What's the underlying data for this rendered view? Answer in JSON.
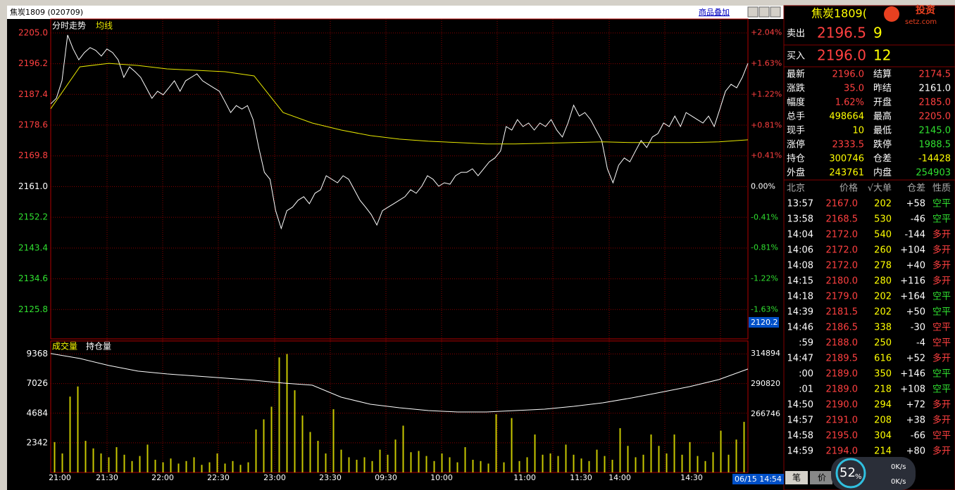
{
  "window": {
    "symbol_title": "焦炭1809 (020709)",
    "overlay_button": "商品叠加",
    "date_time": "06/15 14:54",
    "cursor_price": "2120.2"
  },
  "chart_data": [
    {
      "type": "line",
      "title": "分时走势",
      "ylim": [
        2117.4,
        2209.0
      ],
      "yticks": [
        {
          "value": 2205,
          "label": "2205.0"
        },
        2196.2,
        2187.4,
        2178.6,
        2169.8,
        {
          "value": 2161,
          "label": "2161.0"
        },
        2152.2,
        2143.4,
        2134.6,
        2125.8
      ],
      "y2lim": [
        -2.018,
        2.221
      ],
      "y2ticks": [
        {
          "value": 2.04,
          "label": "+2.04%"
        },
        {
          "value": 1.63,
          "label": "+1.63%"
        },
        {
          "value": 1.22,
          "label": "+1.22%"
        },
        {
          "value": 0.81,
          "label": "+0.81%"
        },
        {
          "value": 0.41,
          "label": "+0.41%"
        },
        {
          "value": 0,
          "label": "0.00%"
        },
        {
          "value": -0.41,
          "label": "-0.41%"
        },
        {
          "value": -0.81,
          "label": "-0.81%"
        },
        {
          "value": -1.22,
          "label": "-1.22%"
        },
        {
          "value": -1.63,
          "label": "-1.63%"
        }
      ],
      "grid": true,
      "series": [
        {
          "color": "#ffffff",
          "values": [
            2184.7,
            2186.3,
            2191.3,
            2204.4,
            2200.4,
            2197.3,
            2199.4,
            2200.8,
            2200,
            2198.4,
            2200.4,
            2199.4,
            2197.3,
            2192.3,
            2195.3,
            2193.9,
            2192.3,
            2189.3,
            2186.3,
            2188.3,
            2187.3,
            2189.3,
            2191.3,
            2188.3,
            2191.3,
            2192.3,
            2193.3,
            2191.3,
            2190.3,
            2189.3,
            2188.3,
            2185.3,
            2182.2,
            2184.2,
            2183.2,
            2184.2,
            2180.2,
            2172.2,
            2165.1,
            2163.1,
            2154.1,
            2149,
            2154.1,
            2155.1,
            2157.1,
            2158.1,
            2156.1,
            2159.1,
            2160.1,
            2164.1,
            2163.1,
            2162.1,
            2164.1,
            2163.1,
            2160.1,
            2157.1,
            2155.1,
            2153,
            2150,
            2154.1,
            2155.1,
            2156.1,
            2157.1,
            2158.1,
            2160.1,
            2159.1,
            2161.1,
            2164.1,
            2163.1,
            2161.1,
            2162.1,
            2161.7,
            2164.1,
            2165.1,
            2165.1,
            2166.1,
            2164.1,
            2166.1,
            2168.1,
            2169.2,
            2171.2,
            2178.2,
            2177.2,
            2180.2,
            2178.2,
            2179.2,
            2177.2,
            2179.2,
            2178.2,
            2180.2,
            2177.2,
            2175.2,
            2179.2,
            2184.3,
            2181.2,
            2182.2,
            2180.2,
            2177.2,
            2174.2,
            2166.1,
            2162.1,
            2167.1,
            2169.2,
            2168.1,
            2171.2,
            2174.2,
            2172.2,
            2175.2,
            2176.2,
            2179.2,
            2178.2,
            2181.2,
            2178.2,
            2182.2,
            2181.2,
            2180.2,
            2179.2,
            2181.2,
            2178.2,
            2183.2,
            2188.3,
            2190.3,
            2189.3,
            2192.3,
            2196.3
          ]
        },
        {
          "name": "均线",
          "color": "#e8e800",
          "values": [
            2183.3,
            2195.3,
            2196.3,
            2195.7,
            2194.7,
            2194.3,
            2193.9,
            2192.7,
            2182.2,
            2179.2,
            2177.2,
            2175.6,
            2174.6,
            2174,
            2173.6,
            2173.2,
            2173.2,
            2173.4,
            2173.6,
            2173.8,
            2173.6,
            2173.6,
            2173.6,
            2173.8,
            2174.4
          ]
        }
      ]
    },
    {
      "type": "bar",
      "x_labels": [
        "21:00",
        "21:30",
        "22:00",
        "22:30",
        "23:00",
        "23:30",
        "09:30",
        "10:00",
        "11:00",
        "11:30",
        "14:00",
        "14:30"
      ],
      "ylim": [
        0,
        10400
      ],
      "yticks": [
        2342,
        4684,
        7026,
        9368
      ],
      "y2lim": [
        220300,
        324900
      ],
      "y2ticks": [
        266746,
        290820,
        314894
      ],
      "grid": true,
      "series": [
        {
          "name": "成交量",
          "type": "bar",
          "color": "#c8c800",
          "values": [
            2400,
            1500,
            6000,
            6800,
            2500,
            1900,
            1500,
            1200,
            2000,
            1400,
            900,
            1300,
            2200,
            1000,
            800,
            1100,
            700,
            900,
            1200,
            600,
            800,
            1500,
            700,
            900,
            600,
            800,
            3400,
            4200,
            5200,
            9100,
            9368,
            6500,
            4500,
            3200,
            2500,
            1500,
            5000,
            1800,
            1200,
            1000,
            1200,
            900,
            1800,
            1400,
            2600,
            3700,
            1600,
            1700,
            1300,
            900,
            1500,
            1200,
            800,
            2000,
            1000,
            900,
            700,
            4600,
            800,
            4300,
            900,
            1200,
            3000,
            1400,
            1500,
            1300,
            2200,
            1400,
            1100,
            900,
            1800,
            1300,
            1000,
            3500,
            2100,
            1200,
            1400,
            3000,
            2100,
            1500,
            3000,
            1400,
            2400,
            1300,
            900,
            1600,
            3300,
            1400,
            2600,
            4000
          ]
        },
        {
          "name": "持仓量",
          "type": "line",
          "axis": "y2",
          "color": "#ffffff",
          "values": [
            314894,
            310974,
            305374,
            300894,
            298654,
            296974,
            295294,
            293614,
            291374,
            289694,
            280174,
            274574,
            271774,
            269534,
            268414,
            268414,
            269534,
            270654,
            272894,
            275694,
            279614,
            284094,
            288574,
            294174,
            302574
          ]
        }
      ]
    }
  ],
  "quote": {
    "header": "焦炭1809(",
    "logo": "投资",
    "logo_url": "setz.com",
    "sell": {
      "label": "卖出",
      "price": "2196.5",
      "qty": "9"
    },
    "buy": {
      "label": "买入",
      "price": "2196.0",
      "qty": "12"
    },
    "stats_left": [
      {
        "label": "最新",
        "value": "2196.0",
        "color": "#ff4040"
      },
      {
        "label": "涨跌",
        "value": "35.0",
        "color": "#ff4040"
      },
      {
        "label": "幅度",
        "value": "1.62%",
        "color": "#ff4040"
      },
      {
        "label": "总手",
        "value": "498664",
        "color": "#ffff00"
      },
      {
        "label": "现手",
        "value": "10",
        "color": "#ffff00"
      },
      {
        "label": "涨停",
        "value": "2333.5",
        "color": "#ff4040"
      },
      {
        "label": "持仓",
        "value": "300746",
        "color": "#ffff00"
      },
      {
        "label": "外盘",
        "value": "243761",
        "color": "#ffff00"
      }
    ],
    "stats_right": [
      {
        "label": "结算",
        "value": "2174.5",
        "color": "#ff4040"
      },
      {
        "label": "昨结",
        "value": "2161.0",
        "color": "#ffffff"
      },
      {
        "label": "开盘",
        "value": "2185.0",
        "color": "#ff4040"
      },
      {
        "label": "最高",
        "value": "2205.0",
        "color": "#ff4040"
      },
      {
        "label": "最低",
        "value": "2145.0",
        "color": "#30e030"
      },
      {
        "label": "跌停",
        "value": "1988.5",
        "color": "#30e030"
      },
      {
        "label": "仓差",
        "value": "-14428",
        "color": "#ffff00"
      },
      {
        "label": "内盘",
        "value": "254903",
        "color": "#30e030"
      }
    ]
  },
  "trades": {
    "header": [
      "北京",
      "价格",
      "√大单",
      "仓差",
      "性质"
    ],
    "rows": [
      {
        "cells": [
          "13:57",
          "2167.0",
          "202",
          "+58",
          "空平"
        ],
        "color": "#30e030"
      },
      {
        "cells": [
          "13:58",
          "2168.5",
          "530",
          "-46",
          "空平"
        ],
        "color": "#30e030"
      },
      {
        "cells": [
          "14:04",
          "2172.0",
          "540",
          "-144",
          "多开"
        ],
        "color": "#ff4040"
      },
      {
        "cells": [
          "14:06",
          "2172.0",
          "260",
          "+104",
          "多开"
        ],
        "color": "#ff4040"
      },
      {
        "cells": [
          "14:08",
          "2172.0",
          "278",
          "+40",
          "多开"
        ],
        "color": "#ff4040"
      },
      {
        "cells": [
          "14:15",
          "2180.0",
          "280",
          "+116",
          "多开"
        ],
        "color": "#ff4040"
      },
      {
        "cells": [
          "14:18",
          "2179.0",
          "202",
          "+164",
          "空平"
        ],
        "color": "#30e030"
      },
      {
        "cells": [
          "14:39",
          "2181.5",
          "202",
          "+50",
          "空平"
        ],
        "color": "#30e030"
      },
      {
        "cells": [
          "14:46",
          "2186.5",
          "338",
          "-30",
          "空平"
        ],
        "color": "#ff4040"
      },
      {
        "cells": [
          ":59",
          "2188.0",
          "250",
          "-4",
          "空平"
        ],
        "color": "#ff4040"
      },
      {
        "cells": [
          "14:47",
          "2189.5",
          "616",
          "+52",
          "多开"
        ],
        "color": "#ff4040"
      },
      {
        "cells": [
          ":00",
          "2189.0",
          "350",
          "+146",
          "空平"
        ],
        "color": "#30e030"
      },
      {
        "cells": [
          ":01",
          "2189.0",
          "218",
          "+108",
          "空平"
        ],
        "color": "#30e030"
      },
      {
        "cells": [
          "14:50",
          "2190.0",
          "294",
          "+72",
          "多开"
        ],
        "color": "#ff4040"
      },
      {
        "cells": [
          "14:57",
          "2191.0",
          "208",
          "+38",
          "多开"
        ],
        "color": "#ff4040"
      },
      {
        "cells": [
          "14:58",
          "2195.0",
          "304",
          "-66",
          "空平"
        ],
        "color": "#ff4040"
      },
      {
        "cells": [
          "14:59",
          "2194.0",
          "214",
          "+80",
          "多开"
        ],
        "color": "#ff4040"
      }
    ]
  },
  "footer": {
    "tab1": "笔",
    "tab2": "价",
    "meter": "52",
    "unit": "%",
    "speed_up": "0K/s",
    "speed_down": "0K/s"
  }
}
